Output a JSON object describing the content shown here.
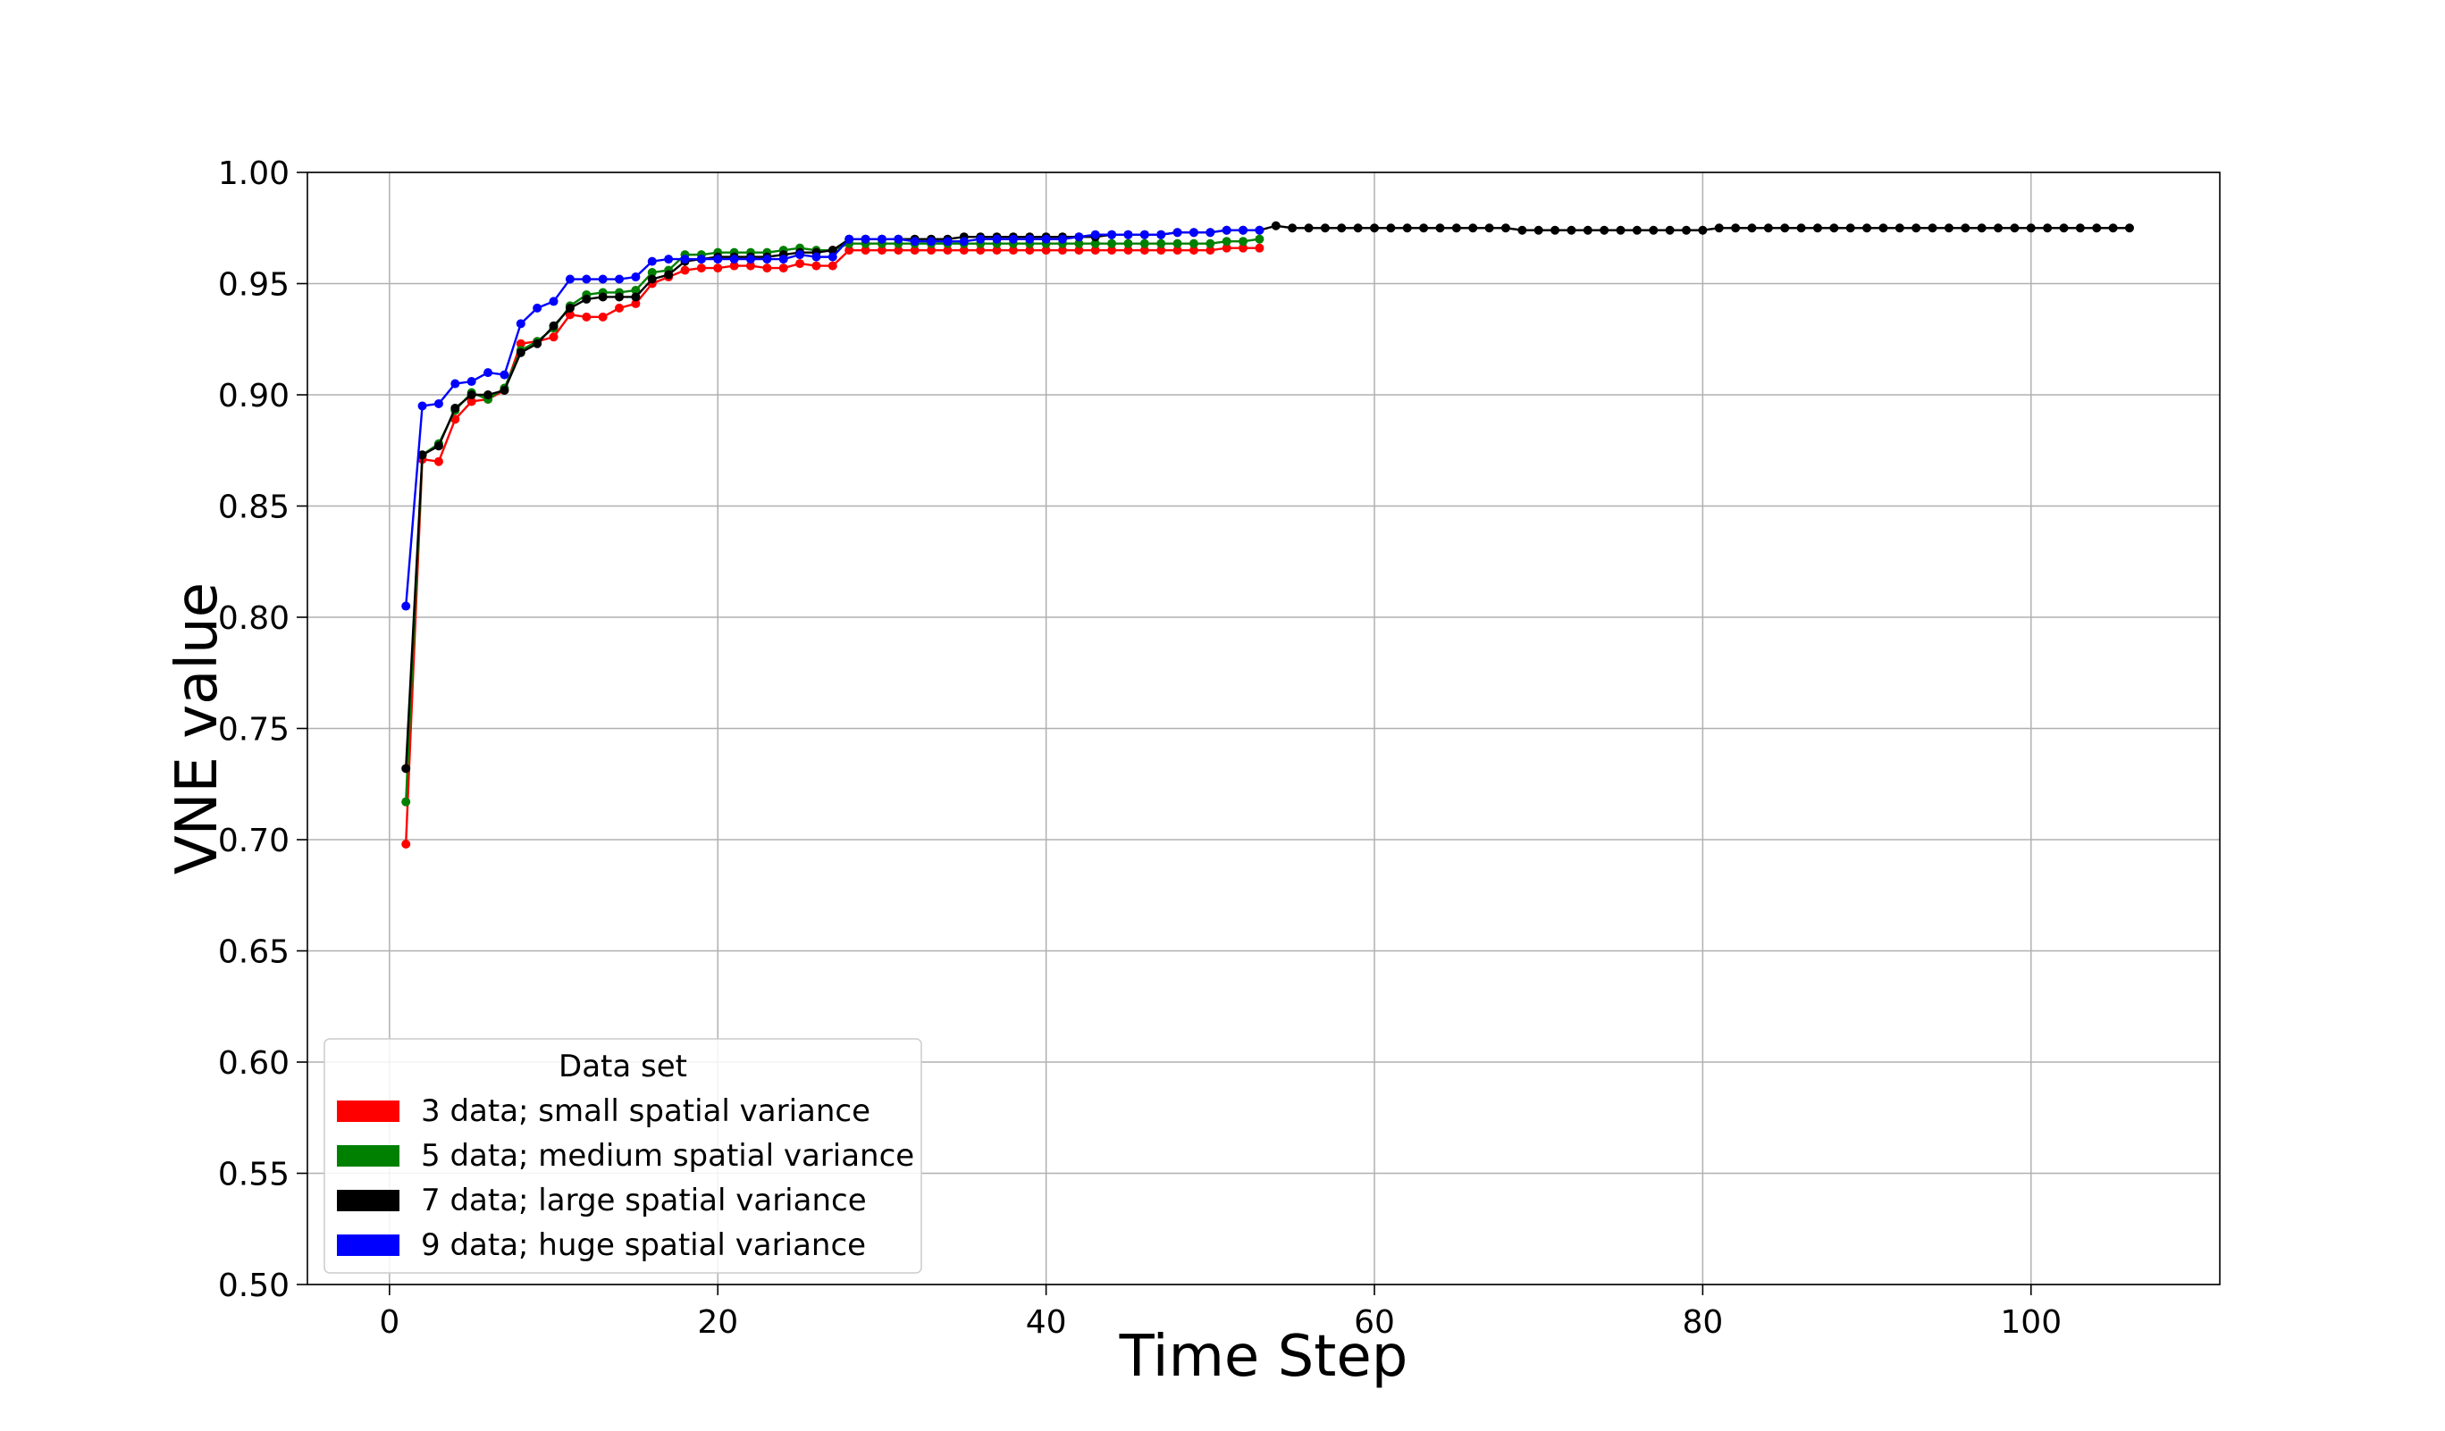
{
  "chart_data": {
    "type": "line",
    "title": "",
    "xlabel": "Time Step",
    "ylabel": "VNE value",
    "xlim": [
      -5,
      111.5
    ],
    "ylim": [
      0.5,
      1.0
    ],
    "xticks": [
      0,
      20,
      40,
      60,
      80,
      100
    ],
    "yticks": [
      0.5,
      0.55,
      0.6,
      0.65,
      0.7,
      0.75,
      0.8,
      0.85,
      0.9,
      0.95,
      1.0
    ],
    "xtick_labels": [
      "0",
      "20",
      "40",
      "60",
      "80",
      "100"
    ],
    "ytick_labels": [
      "0.50",
      "0.55",
      "0.60",
      "0.65",
      "0.70",
      "0.75",
      "0.80",
      "0.85",
      "0.90",
      "0.95",
      "1.00"
    ],
    "grid": true,
    "legend": {
      "title": "Data set",
      "placement": "lower-left"
    },
    "series": [
      {
        "name": "3 data; small spatial variance",
        "color": "#ff0000",
        "x": [
          1,
          2,
          3,
          4,
          5,
          6,
          7,
          8,
          9,
          10,
          11,
          12,
          13,
          14,
          15,
          16,
          17,
          18,
          19,
          20,
          21,
          22,
          23,
          24,
          25,
          26,
          27,
          28,
          29,
          30,
          31,
          32,
          33,
          34,
          35,
          36,
          37,
          38,
          39,
          40,
          41,
          42,
          43,
          44,
          45,
          46,
          47,
          48,
          49,
          50,
          51,
          52,
          53
        ],
        "values": [
          0.698,
          0.871,
          0.87,
          0.889,
          0.897,
          0.898,
          0.902,
          0.923,
          0.924,
          0.926,
          0.936,
          0.935,
          0.935,
          0.939,
          0.941,
          0.95,
          0.953,
          0.956,
          0.957,
          0.957,
          0.958,
          0.958,
          0.957,
          0.957,
          0.959,
          0.958,
          0.958,
          0.965,
          0.965,
          0.965,
          0.965,
          0.965,
          0.965,
          0.965,
          0.965,
          0.965,
          0.965,
          0.965,
          0.965,
          0.965,
          0.965,
          0.965,
          0.965,
          0.965,
          0.965,
          0.965,
          0.965,
          0.965,
          0.965,
          0.965,
          0.966,
          0.966,
          0.966
        ]
      },
      {
        "name": "5 data; medium spatial variance",
        "color": "#008000",
        "x": [
          1,
          2,
          3,
          4,
          5,
          6,
          7,
          8,
          9,
          10,
          11,
          12,
          13,
          14,
          15,
          16,
          17,
          18,
          19,
          20,
          21,
          22,
          23,
          24,
          25,
          26,
          27,
          28,
          29,
          30,
          31,
          32,
          33,
          34,
          35,
          36,
          37,
          38,
          39,
          40,
          41,
          42,
          43,
          44,
          45,
          46,
          47,
          48,
          49,
          50,
          51,
          52,
          53
        ],
        "values": [
          0.717,
          0.873,
          0.878,
          0.893,
          0.901,
          0.898,
          0.903,
          0.92,
          0.924,
          0.93,
          0.94,
          0.945,
          0.946,
          0.946,
          0.947,
          0.955,
          0.956,
          0.963,
          0.963,
          0.964,
          0.964,
          0.964,
          0.964,
          0.965,
          0.966,
          0.965,
          0.965,
          0.968,
          0.968,
          0.968,
          0.968,
          0.968,
          0.968,
          0.968,
          0.968,
          0.968,
          0.968,
          0.968,
          0.968,
          0.968,
          0.968,
          0.968,
          0.968,
          0.968,
          0.968,
          0.968,
          0.968,
          0.968,
          0.968,
          0.968,
          0.969,
          0.969,
          0.97
        ]
      },
      {
        "name": "7 data; large spatial variance",
        "color": "#000000",
        "x": [
          1,
          2,
          3,
          4,
          5,
          6,
          7,
          8,
          9,
          10,
          11,
          12,
          13,
          14,
          15,
          16,
          17,
          18,
          19,
          20,
          21,
          22,
          23,
          24,
          25,
          26,
          27,
          28,
          29,
          30,
          31,
          32,
          33,
          34,
          35,
          36,
          37,
          38,
          39,
          40,
          41,
          42,
          43,
          44,
          45,
          46,
          47,
          48,
          49,
          50,
          51,
          52,
          53,
          54,
          55,
          56,
          57,
          58,
          59,
          60,
          61,
          62,
          63,
          64,
          65,
          66,
          67,
          68,
          69,
          70,
          71,
          72,
          73,
          74,
          75,
          76,
          77,
          78,
          79,
          80,
          81,
          82,
          83,
          84,
          85,
          86,
          87,
          88,
          89,
          90,
          91,
          92,
          93,
          94,
          95,
          96,
          97,
          98,
          99,
          100,
          101,
          102,
          103,
          104,
          105,
          106
        ],
        "values": [
          0.732,
          0.873,
          0.877,
          0.894,
          0.9,
          0.9,
          0.902,
          0.919,
          0.923,
          0.931,
          0.939,
          0.943,
          0.944,
          0.944,
          0.944,
          0.952,
          0.954,
          0.96,
          0.961,
          0.962,
          0.962,
          0.962,
          0.962,
          0.963,
          0.964,
          0.964,
          0.965,
          0.97,
          0.97,
          0.97,
          0.97,
          0.97,
          0.97,
          0.97,
          0.971,
          0.971,
          0.971,
          0.971,
          0.971,
          0.971,
          0.971,
          0.971,
          0.971,
          0.972,
          0.972,
          0.972,
          0.972,
          0.973,
          0.973,
          0.973,
          0.974,
          0.974,
          0.974,
          0.976,
          0.975,
          0.975,
          0.975,
          0.975,
          0.975,
          0.975,
          0.975,
          0.975,
          0.975,
          0.975,
          0.975,
          0.975,
          0.975,
          0.975,
          0.974,
          0.974,
          0.974,
          0.974,
          0.974,
          0.974,
          0.974,
          0.974,
          0.974,
          0.974,
          0.974,
          0.974,
          0.975,
          0.975,
          0.975,
          0.975,
          0.975,
          0.975,
          0.975,
          0.975,
          0.975,
          0.975,
          0.975,
          0.975,
          0.975,
          0.975,
          0.975,
          0.975,
          0.975,
          0.975,
          0.975,
          0.975,
          0.975,
          0.975,
          0.975,
          0.975,
          0.975,
          0.975
        ]
      },
      {
        "name": "9 data; huge spatial variance",
        "color": "#0000ff",
        "x": [
          1,
          2,
          3,
          4,
          5,
          6,
          7,
          8,
          9,
          10,
          11,
          12,
          13,
          14,
          15,
          16,
          17,
          18,
          19,
          20,
          21,
          22,
          23,
          24,
          25,
          26,
          27,
          28,
          29,
          30,
          31,
          32,
          33,
          34,
          35,
          36,
          37,
          38,
          39,
          40,
          41,
          42,
          43,
          44,
          45,
          46,
          47,
          48,
          49,
          50,
          51,
          52,
          53
        ],
        "values": [
          0.805,
          0.895,
          0.896,
          0.905,
          0.906,
          0.91,
          0.909,
          0.932,
          0.939,
          0.942,
          0.952,
          0.952,
          0.952,
          0.952,
          0.953,
          0.96,
          0.961,
          0.961,
          0.961,
          0.961,
          0.961,
          0.961,
          0.961,
          0.961,
          0.963,
          0.962,
          0.962,
          0.97,
          0.97,
          0.97,
          0.97,
          0.969,
          0.969,
          0.969,
          0.969,
          0.97,
          0.97,
          0.97,
          0.97,
          0.97,
          0.97,
          0.971,
          0.972,
          0.972,
          0.972,
          0.972,
          0.972,
          0.973,
          0.973,
          0.973,
          0.974,
          0.974,
          0.974
        ]
      }
    ]
  }
}
